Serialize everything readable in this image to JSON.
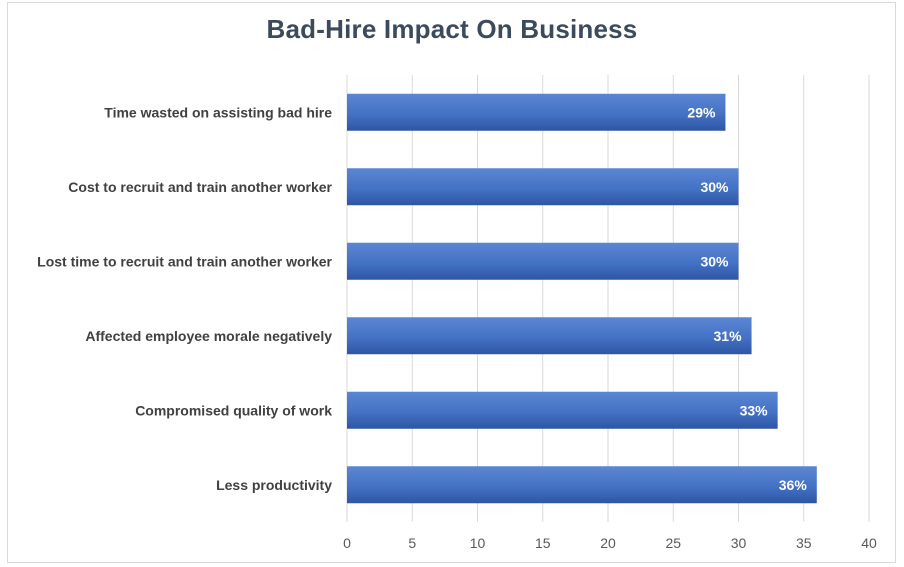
{
  "chart_data": {
    "type": "bar",
    "orientation": "horizontal",
    "title": "Bad-Hire Impact On Business",
    "categories": [
      "Time wasted on assisting bad hire",
      "Cost to recruit and train another worker",
      "Lost time to recruit and train another worker",
      "Affected employee morale negatively",
      "Compromised quality of work",
      "Less productivity"
    ],
    "values": [
      29,
      30,
      30,
      31,
      33,
      36
    ],
    "data_labels": [
      "29%",
      "30%",
      "30%",
      "31%",
      "33%",
      "36%"
    ],
    "xlim": [
      0,
      40
    ],
    "xticks": [
      0,
      5,
      10,
      15,
      20,
      25,
      30,
      35,
      40
    ],
    "xlabel": "",
    "ylabel": "",
    "grid": "vertical",
    "legend": "none",
    "colors": {
      "bar": "#4472c4",
      "bar_dark": "#2f55a4",
      "grid": "#d9d9d9"
    }
  }
}
